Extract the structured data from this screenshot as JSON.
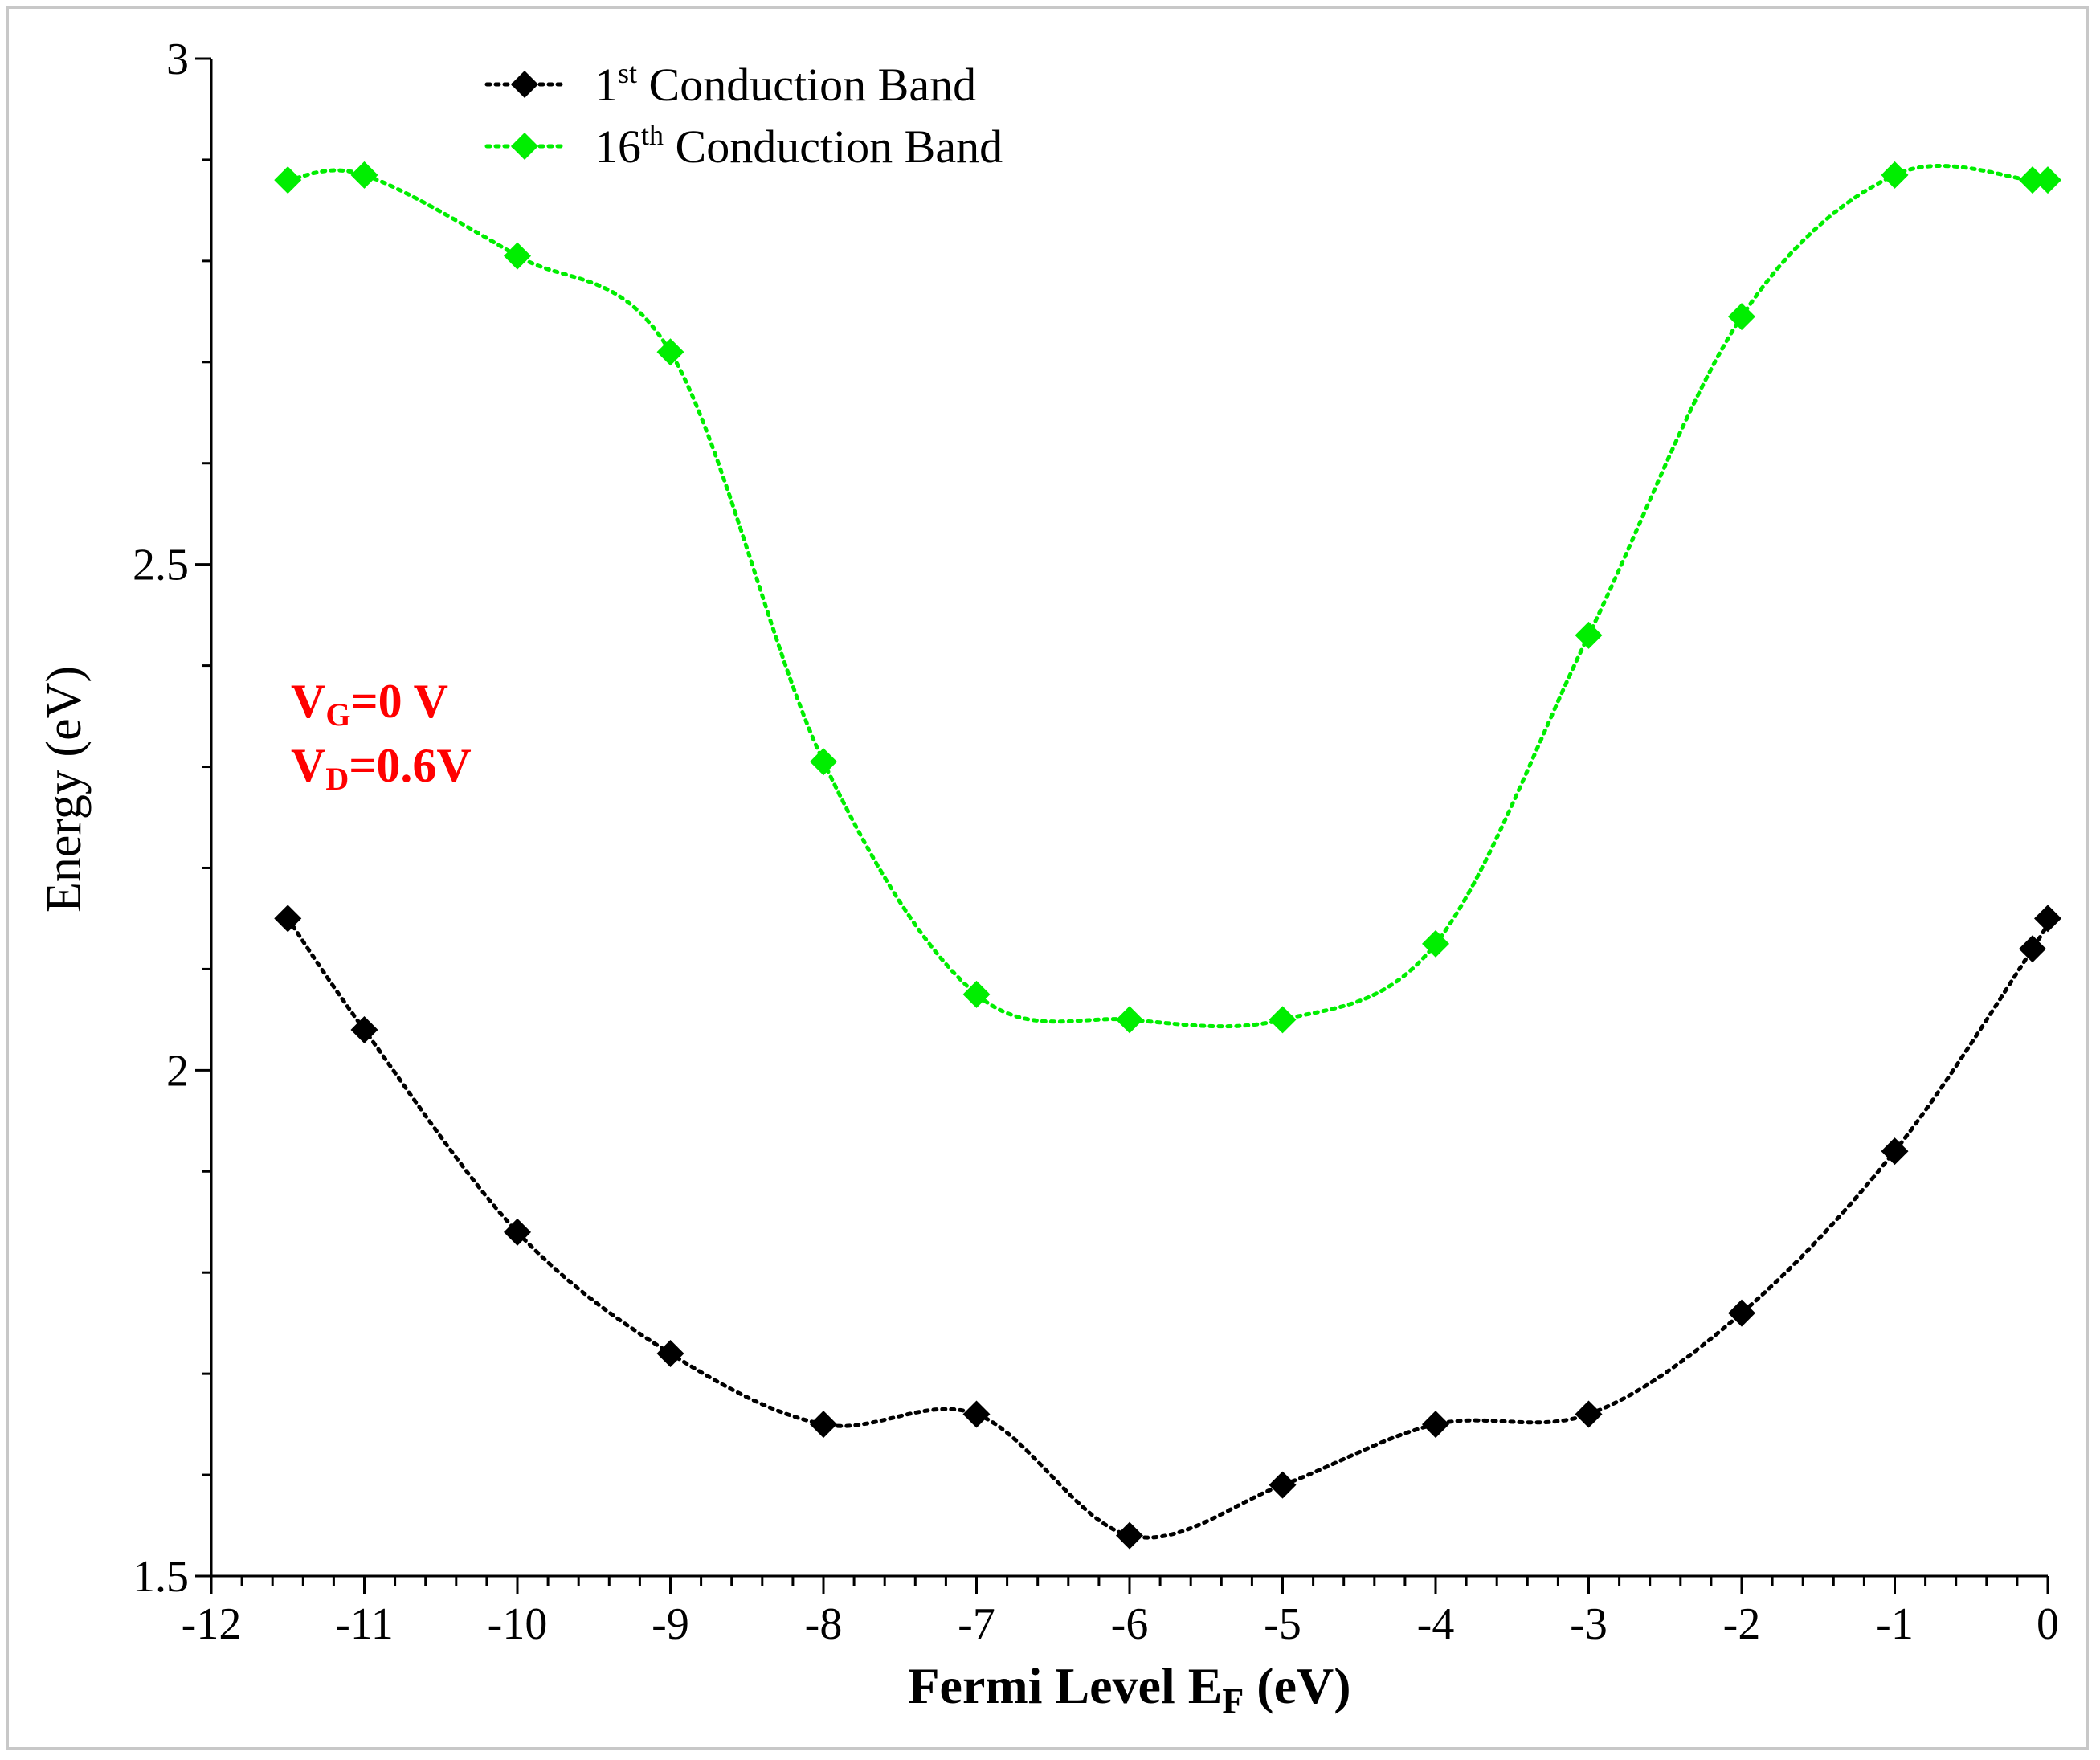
{
  "chart_data": {
    "type": "line",
    "title": "",
    "xlabel": "Fermi Level E",
    "xlabel_sub": "F",
    "xlabel_unit": " (eV)",
    "ylabel": "Energy (eV)",
    "xlim": [
      -12,
      0
    ],
    "ylim": [
      1.5,
      3
    ],
    "x_ticks": [
      -12,
      -11,
      -10,
      -9,
      -8,
      -7,
      -6,
      -5,
      -4,
      -3,
      -2,
      -1,
      0
    ],
    "x_tick_labels": [
      "-12",
      "-11",
      "-10",
      "-9",
      "-8",
      "-7",
      "-6",
      "-5",
      "-4",
      "-3",
      "-2",
      "-1",
      "0"
    ],
    "y_ticks": [
      1.5,
      2,
      2.5,
      3
    ],
    "y_tick_labels": [
      "1.5",
      "2",
      "2.5",
      "3"
    ],
    "grid": false,
    "legend_position": "top-left",
    "series": [
      {
        "name": "1st Conduction Band",
        "legend_base": "1",
        "legend_sup": "st",
        "legend_rest": " Conduction Band",
        "color": "#000000",
        "x": [
          -11.5,
          -11,
          -10,
          -9,
          -8,
          -7,
          -6,
          -5,
          -4,
          -3,
          -2,
          -1,
          -0.1,
          0
        ],
        "y": [
          2.15,
          2.04,
          1.84,
          1.72,
          1.65,
          1.66,
          1.54,
          1.59,
          1.65,
          1.66,
          1.76,
          1.92,
          2.12,
          2.15
        ]
      },
      {
        "name": "16th Conduction Band",
        "legend_base": "16",
        "legend_sup": "th",
        "legend_rest": " Conduction Band",
        "color": "#00ee00",
        "x": [
          -11.5,
          -11,
          -10,
          -9,
          -8,
          -7,
          -6,
          -5,
          -4,
          -3,
          -2,
          -1,
          -0.1,
          0
        ],
        "y": [
          2.88,
          2.885,
          2.805,
          2.71,
          2.305,
          2.075,
          2.05,
          2.05,
          2.125,
          2.43,
          2.745,
          2.885,
          2.88,
          2.88
        ]
      }
    ],
    "annotations": {
      "color": "#ff0000",
      "line1": {
        "base": "V",
        "sub": "G",
        "rest": "=0 V"
      },
      "line2": {
        "base": "V",
        "sub": "D",
        "rest": "=0.6V"
      }
    }
  }
}
